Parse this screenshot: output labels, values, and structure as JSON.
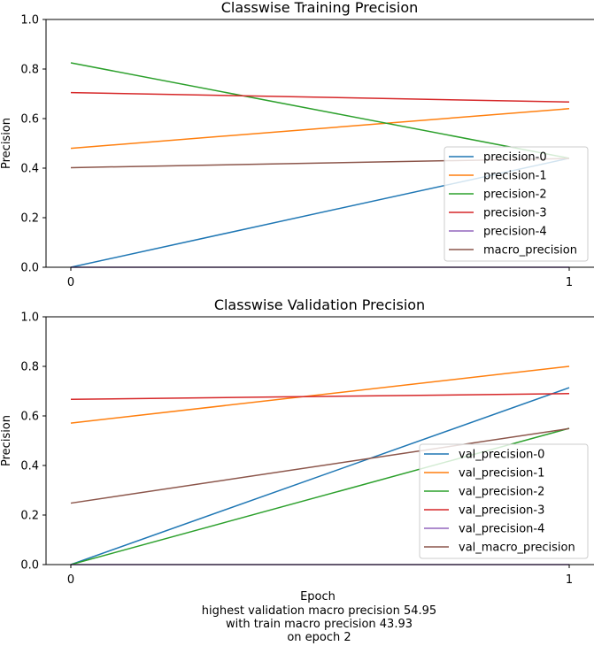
{
  "chart_data": [
    {
      "type": "line",
      "title": "Classwise Training Precision",
      "xlabel": "",
      "ylabel": "Precision",
      "x": [
        0,
        1
      ],
      "xticks": [
        "0",
        "1"
      ],
      "ylim": [
        0,
        1.0
      ],
      "yticks": [
        "0.0",
        "0.2",
        "0.4",
        "0.6",
        "0.8",
        "1.0"
      ],
      "legend_position": "lower-right",
      "series": [
        {
          "name": "precision-0",
          "color": "#1f77b4",
          "values": [
            0.0,
            0.44
          ]
        },
        {
          "name": "precision-1",
          "color": "#ff7f0e",
          "values": [
            0.48,
            0.64
          ]
        },
        {
          "name": "precision-2",
          "color": "#2ca02c",
          "values": [
            0.825,
            0.44
          ]
        },
        {
          "name": "precision-3",
          "color": "#d62728",
          "values": [
            0.705,
            0.667
          ]
        },
        {
          "name": "precision-4",
          "color": "#9467bd",
          "values": [
            0.0,
            0.0
          ]
        },
        {
          "name": "macro_precision",
          "color": "#8c564b",
          "values": [
            0.402,
            0.439
          ]
        }
      ]
    },
    {
      "type": "line",
      "title": "Classwise Validation Precision",
      "xlabel": "Epoch",
      "ylabel": "Precision",
      "x": [
        0,
        1
      ],
      "xticks": [
        "0",
        "1"
      ],
      "ylim": [
        0,
        1.0
      ],
      "yticks": [
        "0.0",
        "0.2",
        "0.4",
        "0.6",
        "0.8",
        "1.0"
      ],
      "legend_position": "lower-right",
      "series": [
        {
          "name": "val_precision-0",
          "color": "#1f77b4",
          "values": [
            0.0,
            0.714
          ]
        },
        {
          "name": "val_precision-1",
          "color": "#ff7f0e",
          "values": [
            0.571,
            0.8
          ]
        },
        {
          "name": "val_precision-2",
          "color": "#2ca02c",
          "values": [
            0.0,
            0.55
          ]
        },
        {
          "name": "val_precision-3",
          "color": "#d62728",
          "values": [
            0.667,
            0.69
          ]
        },
        {
          "name": "val_precision-4",
          "color": "#9467bd",
          "values": [
            0.0,
            0.0
          ]
        },
        {
          "name": "val_macro_precision",
          "color": "#8c564b",
          "values": [
            0.248,
            0.549
          ]
        }
      ]
    }
  ],
  "footer": {
    "line1": "highest validation macro precision 54.95",
    "line2": "with train macro precision 43.93",
    "line3": "on epoch 2"
  }
}
